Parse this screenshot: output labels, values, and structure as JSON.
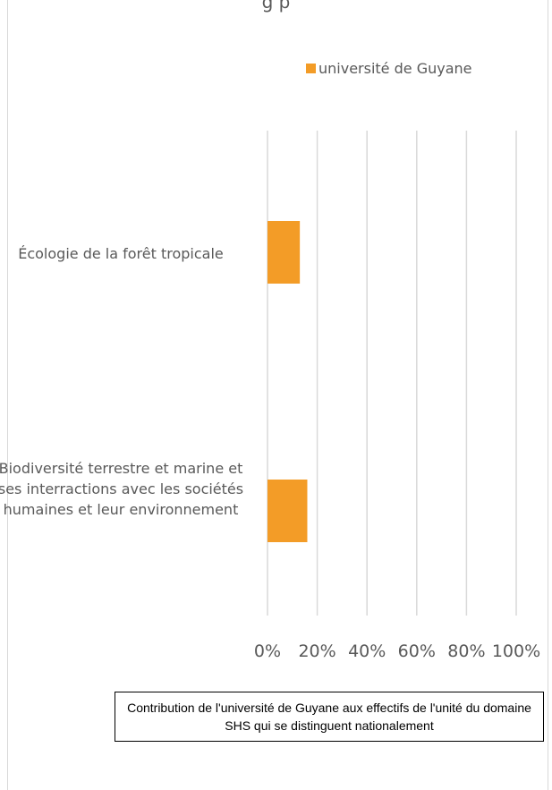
{
  "chart_data": {
    "type": "bar",
    "orientation": "horizontal",
    "title": "",
    "categories": [
      "Écologie de la forêt tropicale",
      "Biodiversité terrestre et marine et ses interractions avec les sociétés humaines et leur environnement"
    ],
    "series": [
      {
        "name": "université de Guyane",
        "values": [
          0.13,
          0.16
        ],
        "color": "#f39c27"
      }
    ],
    "xlim": [
      0,
      1
    ],
    "x_ticks": [
      0,
      0.2,
      0.4,
      0.6,
      0.8,
      1.0
    ],
    "x_tick_labels": [
      "0%",
      "20%",
      "40%",
      "60%",
      "80%",
      "100%"
    ],
    "grid": "vertical",
    "legend_position": "top-right"
  },
  "title_fragment": "g                    p",
  "caption": "Contribution de l'université de Guyane aux effectifs de l'unité du domaine SHS qui se distinguent nationalement",
  "colors": {
    "bar": "#f39c27",
    "grid": "#d9d9d9",
    "text": "#595959"
  }
}
